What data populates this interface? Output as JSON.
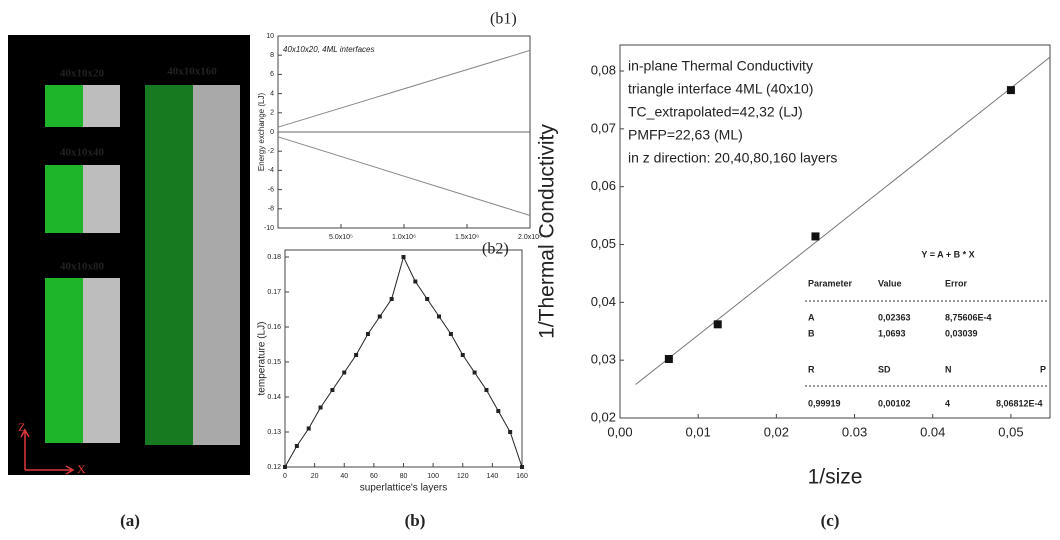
{
  "figure": {
    "panel_labels": [
      "(a)",
      "(b)",
      "(c)"
    ],
    "boxes": [
      "40x10x20",
      "40x10x40",
      "40x10x80",
      "40x10x160"
    ],
    "axis_labels": [
      "Z",
      "X"
    ]
  },
  "chart_data": [
    {
      "type": "line",
      "label": "(b1)",
      "annotation": "40x10x20, 4ML interfaces",
      "y_label": "Energy exchange (LJ)",
      "x": [
        0,
        2000000
      ],
      "series": [
        {
          "color": "#888888",
          "values": [
            0.5,
            8.5
          ]
        },
        {
          "color": "#888888",
          "values": [
            -0.5,
            -8.7
          ]
        }
      ],
      "hlines": [
        0
      ],
      "xlim": [
        0,
        2000000
      ],
      "xticks": [
        {
          "value": 500000,
          "label": "5.0x10⁵"
        },
        {
          "value": 1000000,
          "label": "1.0x10⁶"
        },
        {
          "value": 1500000,
          "label": "1.5x10⁶"
        },
        {
          "value": 2000000,
          "label": "2.0x10⁶"
        }
      ],
      "ylim": [
        -10,
        10
      ],
      "yticks": [
        -10,
        -8,
        -6,
        -4,
        -2,
        0,
        2,
        4,
        6,
        8,
        10
      ]
    },
    {
      "type": "line",
      "label": "(b2)",
      "x_label": "superlattice's layers",
      "y_label": "temperature (LJ)",
      "markers": true,
      "x": [
        0,
        8,
        16,
        24,
        32,
        40,
        48,
        56,
        64,
        72,
        80,
        88,
        96,
        104,
        112,
        120,
        128,
        136,
        144,
        152,
        160
      ],
      "series": [
        {
          "color": "#222222",
          "values": [
            0.12,
            0.126,
            0.131,
            0.137,
            0.142,
            0.147,
            0.152,
            0.158,
            0.163,
            0.168,
            0.18,
            0.173,
            0.168,
            0.163,
            0.158,
            0.152,
            0.147,
            0.142,
            0.136,
            0.13,
            0.12
          ]
        }
      ],
      "xlim": [
        0,
        160
      ],
      "xticks": [
        0,
        20,
        40,
        60,
        80,
        100,
        120,
        140,
        160
      ],
      "ylim": [
        0.12,
        0.182
      ],
      "yticks": [
        0.12,
        0.13,
        0.14,
        0.15,
        0.16,
        0.17,
        0.18
      ]
    },
    {
      "type": "scatter",
      "x_label": "1/size",
      "y_label": "1/Thermal Conductivity",
      "annotations": [
        "in-plane Thermal Conductivity",
        "triangle interface 4ML (40x10)",
        "TC_extrapolated=42,32 (LJ)",
        "PMFP=22,63 (ML)",
        "in z direction: 20,40,80,160 layers"
      ],
      "series": [
        {
          "color": "#111111",
          "x": [
            0.00625,
            0.0125,
            0.025,
            0.05
          ],
          "values": [
            0.0302,
            0.0362,
            0.0514,
            0.0767
          ]
        }
      ],
      "fit_line": {
        "color": "#777777",
        "x": [
          0.002,
          0.055
        ],
        "y": [
          0.0258,
          0.0824
        ]
      },
      "xlim": [
        0,
        0.055
      ],
      "xticks": [
        {
          "value": 0,
          "label": "0,00"
        },
        {
          "value": 0.01,
          "label": "0,01"
        },
        {
          "value": 0.02,
          "label": "0,02"
        },
        {
          "value": 0.03,
          "label": "0.03"
        },
        {
          "value": 0.04,
          "label": "0.04"
        },
        {
          "value": 0.05,
          "label": "0,05"
        }
      ],
      "ylim": [
        0.02,
        0.0845
      ],
      "yticks": [
        {
          "value": 0.02,
          "label": "0,02"
        },
        {
          "value": 0.03,
          "label": "0,03"
        },
        {
          "value": 0.04,
          "label": "0,04"
        },
        {
          "value": 0.05,
          "label": "0,05"
        },
        {
          "value": 0.06,
          "label": "0,06"
        },
        {
          "value": 0.07,
          "label": "0,07"
        },
        {
          "value": 0.08,
          "label": "0,08"
        }
      ],
      "table": {
        "equation": "Y = A + B * X",
        "header": [
          "Parameter",
          "Value",
          "Error"
        ],
        "rows": [
          [
            "A",
            "0,02363",
            "8,75606E-4"
          ],
          [
            "B",
            "1,0693",
            "0,03039"
          ]
        ],
        "stats_header": [
          "R",
          "SD",
          "N",
          "P"
        ],
        "stats_row": [
          "0,99919",
          "0,00102",
          "4",
          "8,06812E-4"
        ]
      }
    }
  ]
}
